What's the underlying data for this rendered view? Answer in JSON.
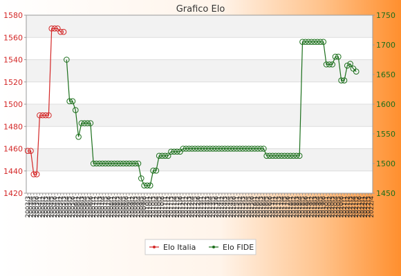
{
  "chart_data": {
    "type": "line",
    "title": "Grafico Elo",
    "legend": {
      "placement": "bottom-center"
    },
    "grid": true,
    "y_left": {
      "range": [
        1420,
        1580
      ],
      "ticks": [
        1420,
        1440,
        1460,
        1480,
        1500,
        1520,
        1540,
        1560,
        1580
      ],
      "color": "#d32626"
    },
    "y_right": {
      "range": [
        1450,
        1750
      ],
      "ticks": [
        1450,
        1500,
        1550,
        1600,
        1650,
        1700,
        1750
      ],
      "color": "#1a6e1a"
    },
    "x_tick_labels": [
      "2003/3",
      "2003/4",
      "2003/5",
      "2003/6",
      "2004/1",
      "2004/2",
      "2004/3",
      "2004/4",
      "2004/5",
      "2004/6",
      "2005/1",
      "2005/2",
      "2005/3",
      "2005/4",
      "2005/5",
      "2005/6",
      "2006/1",
      "2006/2",
      "2006/3",
      "2006/4",
      "2006/5",
      "2006/6",
      "2007/1",
      "2007/2",
      "2007/3",
      "2007/4",
      "2007/5",
      "2007/6",
      "2008/1",
      "2008/2",
      "2008/3",
      "2008/4",
      "2008/5",
      "2008/6",
      "2009/1",
      "2009/2",
      "2009/3",
      "2009/4",
      "2009/5",
      "2009/6",
      "2010/1",
      "2010/2",
      "2010/3",
      "2010/4",
      "2010/5",
      "2010/6",
      "2011/1",
      "2011/2",
      "2011/3",
      "2011/4",
      "2011/5",
      "2011/6",
      "2012/1",
      "2012/2",
      "2012/3",
      "2012/4",
      "2012/5",
      "2012/6",
      "2013/1",
      "2013/2",
      "2013/3",
      "2013/4",
      "2013/5",
      "2013/6",
      "2014/1",
      "2014/2",
      "2014/3",
      "2014/4",
      "2014/5",
      "2014/6",
      "2015/1",
      "2015/2",
      "2015/3",
      "2015/4",
      "2015/5",
      "2015/6",
      "2016/1",
      "2016/2",
      "2016/3",
      "2016/4",
      "2016/5",
      "2016/6",
      "2017/1",
      "2017/2",
      "2017/3",
      "2017/4",
      "2017/5",
      "2017/6",
      "2018/1",
      "2018/2",
      "2018/3",
      "2018/4",
      "2018/5",
      "2018/6",
      "2019/1",
      "2019/2",
      "2019/3",
      "2019/4",
      "2019/5",
      "2019/6",
      "2020/1",
      "2020/2",
      "2020/3",
      "2020/4",
      "2020/5",
      "2020/6",
      "2021/1",
      "2021/2",
      "2021/3",
      "2021/4",
      "2021/5",
      "2021/6",
      "2022/1",
      "2022/2",
      "2022/3",
      "2022/4"
    ],
    "series": [
      {
        "name": "Elo Italia",
        "axis": "left",
        "color": "#d32626",
        "points": [
          [
            0,
            1458
          ],
          [
            1,
            1458
          ],
          [
            2,
            1437
          ],
          [
            3,
            1437
          ],
          [
            4,
            1490
          ],
          [
            5,
            1490
          ],
          [
            6,
            1490
          ],
          [
            7,
            1490
          ],
          [
            8,
            1568
          ],
          [
            9,
            1568
          ],
          [
            10,
            1568
          ],
          [
            11,
            1565
          ],
          [
            12,
            1565
          ]
        ]
      },
      {
        "name": "Elo FIDE",
        "axis": "right",
        "color": "#1a6e1a",
        "points": [
          [
            13,
            1675
          ],
          [
            14,
            1605
          ],
          [
            15,
            1605
          ],
          [
            16,
            1590
          ],
          [
            17,
            1545
          ],
          [
            18,
            1568
          ],
          [
            19,
            1568
          ],
          [
            20,
            1568
          ],
          [
            21,
            1568
          ],
          [
            22,
            1500
          ],
          [
            23,
            1500
          ],
          [
            24,
            1500
          ],
          [
            25,
            1500
          ],
          [
            26,
            1500
          ],
          [
            27,
            1500
          ],
          [
            28,
            1500
          ],
          [
            29,
            1500
          ],
          [
            30,
            1500
          ],
          [
            31,
            1500
          ],
          [
            32,
            1500
          ],
          [
            33,
            1500
          ],
          [
            34,
            1500
          ],
          [
            35,
            1500
          ],
          [
            36,
            1500
          ],
          [
            37,
            1500
          ],
          [
            38,
            1475
          ],
          [
            39,
            1463
          ],
          [
            40,
            1463
          ],
          [
            41,
            1463
          ],
          [
            42,
            1488
          ],
          [
            43,
            1488
          ],
          [
            44,
            1513
          ],
          [
            45,
            1513
          ],
          [
            46,
            1513
          ],
          [
            47,
            1513
          ],
          [
            48,
            1520
          ],
          [
            49,
            1520
          ],
          [
            50,
            1520
          ],
          [
            51,
            1520
          ],
          [
            52,
            1525
          ],
          [
            53,
            1525
          ],
          [
            54,
            1525
          ],
          [
            55,
            1525
          ],
          [
            56,
            1525
          ],
          [
            57,
            1525
          ],
          [
            58,
            1525
          ],
          [
            59,
            1525
          ],
          [
            60,
            1525
          ],
          [
            61,
            1525
          ],
          [
            62,
            1525
          ],
          [
            63,
            1525
          ],
          [
            64,
            1525
          ],
          [
            65,
            1525
          ],
          [
            66,
            1525
          ],
          [
            67,
            1525
          ],
          [
            68,
            1525
          ],
          [
            69,
            1525
          ],
          [
            70,
            1525
          ],
          [
            71,
            1525
          ],
          [
            72,
            1525
          ],
          [
            73,
            1525
          ],
          [
            74,
            1525
          ],
          [
            75,
            1525
          ],
          [
            76,
            1525
          ],
          [
            77,
            1525
          ],
          [
            78,
            1525
          ],
          [
            79,
            1525
          ],
          [
            80,
            1513
          ],
          [
            81,
            1513
          ],
          [
            82,
            1513
          ],
          [
            83,
            1513
          ],
          [
            84,
            1513
          ],
          [
            85,
            1513
          ],
          [
            86,
            1513
          ],
          [
            87,
            1513
          ],
          [
            88,
            1513
          ],
          [
            89,
            1513
          ],
          [
            90,
            1513
          ],
          [
            91,
            1513
          ],
          [
            92,
            1705
          ],
          [
            93,
            1705
          ],
          [
            94,
            1705
          ],
          [
            95,
            1705
          ],
          [
            96,
            1705
          ],
          [
            97,
            1705
          ],
          [
            98,
            1705
          ],
          [
            99,
            1705
          ],
          [
            100,
            1667
          ],
          [
            101,
            1667
          ],
          [
            102,
            1667
          ],
          [
            103,
            1680
          ],
          [
            104,
            1680
          ],
          [
            105,
            1640
          ],
          [
            106,
            1640
          ],
          [
            107,
            1665
          ],
          [
            108,
            1668
          ],
          [
            109,
            1660
          ],
          [
            110,
            1655
          ]
        ]
      }
    ]
  }
}
